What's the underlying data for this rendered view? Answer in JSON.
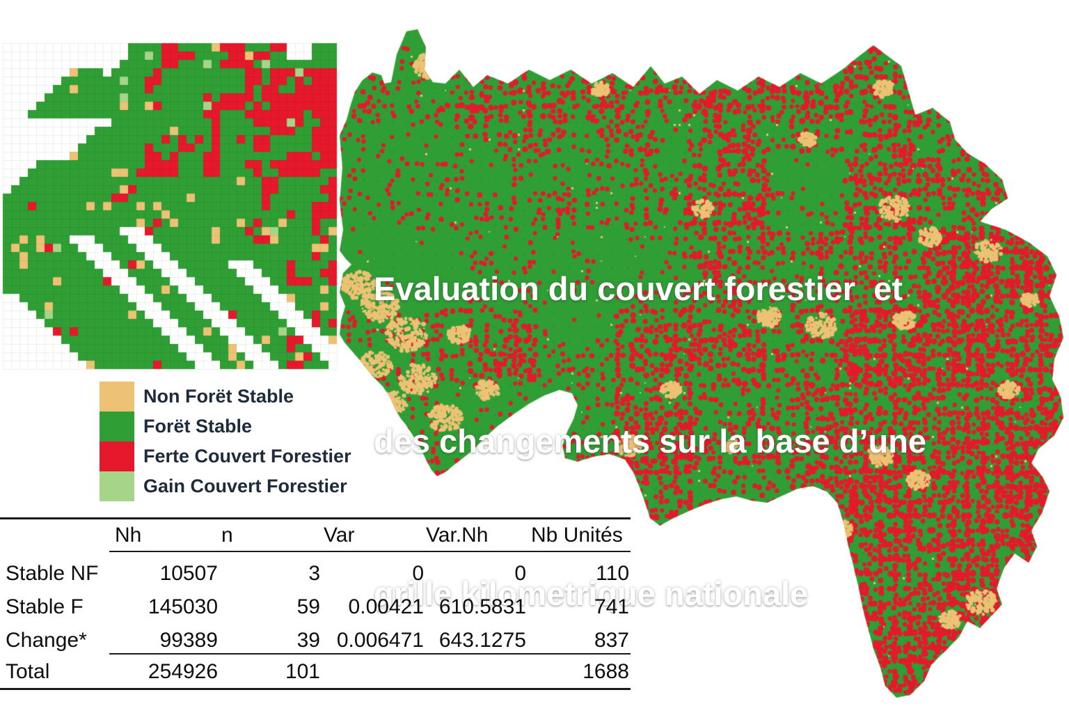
{
  "title": {
    "lines": [
      "Evaluation du couvert forestier  et",
      "des changements sur la base d’une",
      "grille kilometrique nationale"
    ],
    "color": "#ffffff"
  },
  "legend": {
    "items": [
      {
        "name": "non-foret-stable",
        "label": "Non Forët Stable",
        "color": "#edc275"
      },
      {
        "name": "foret-stable",
        "label": "Forët Stable",
        "color": "#2f9e35"
      },
      {
        "name": "perte-couvert",
        "label": "Ferte Couvert Forestier",
        "color": "#e6182b"
      },
      {
        "name": "gain-couvert",
        "label": "Gain Couvert Forestier",
        "color": "#a6d489"
      }
    ]
  },
  "table": {
    "headers": [
      "Nh",
      "n",
      "Var",
      "Var.Nh",
      "Nb Unités"
    ],
    "rows": [
      {
        "label": "Stable NF",
        "values": [
          "10507",
          "3",
          "0",
          "0",
          "110"
        ]
      },
      {
        "label": "Stable F",
        "values": [
          "145030",
          "59",
          "0.00421",
          "610.5831",
          "741"
        ]
      },
      {
        "label": "Change*",
        "values": [
          "99389",
          "39",
          "0.006471",
          "643.1275",
          "837"
        ]
      }
    ],
    "total": {
      "label": "Total",
      "values": [
        "254926",
        "101",
        "",
        "",
        "1688"
      ]
    }
  },
  "map": {
    "background": "#ffffff",
    "palette": {
      "non_foret_stable": "#edc275",
      "foret_stable": "#2f9e35",
      "perte_couvert_forestier": "#e6182b",
      "gain_couvert_forestier": "#a6d489",
      "grid_dot": "rgba(20,90,20,0.16)"
    }
  }
}
